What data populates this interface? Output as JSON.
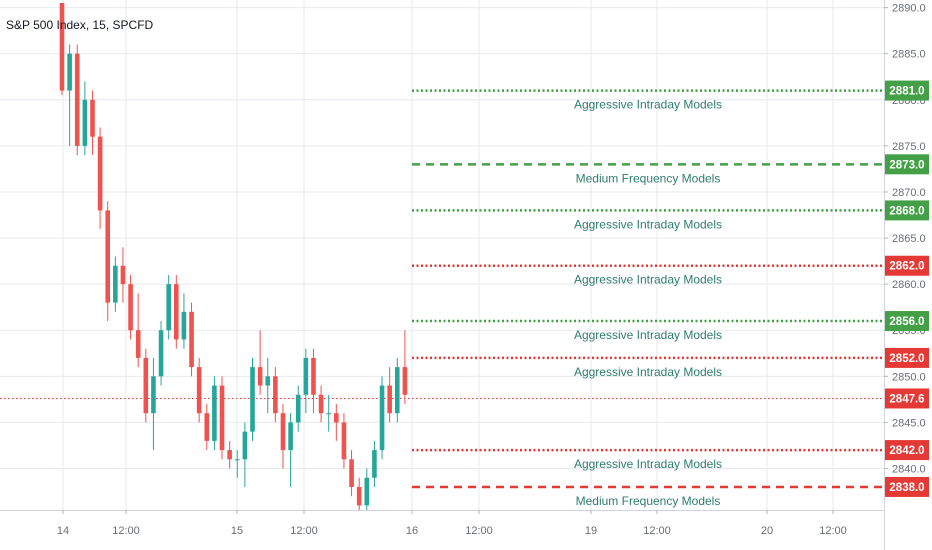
{
  "header": {
    "title": "S&P 500 Index, 15, SPCFD"
  },
  "colors": {
    "bull": "#26a69a",
    "bear": "#ef5350",
    "green_level": "#43a047",
    "red_level": "#e53935",
    "label_text": "#2e7d6d",
    "grid": "#e6e9ef",
    "axis_text": "#6a6d78"
  },
  "chart_data": {
    "type": "candlestick",
    "title": "S&P 500 Index, 15, SPCFD",
    "y_ticks": [
      "2840.0",
      "2845.0",
      "2850.0",
      "2855.0",
      "2860.0",
      "2865.0",
      "2870.0",
      "2875.0",
      "2880.0",
      "2885.0",
      "2890.0"
    ],
    "x_ticks": [
      "14",
      "12:00",
      "15",
      "12:00",
      "16",
      "12:00",
      "19",
      "12:00",
      "20",
      "12:00"
    ],
    "ylim": [
      2835.5,
      2890.5
    ],
    "current_price": {
      "label": "2847.6",
      "value": 2847.6
    },
    "levels": [
      {
        "value": 2881.0,
        "price_label": "2881.0",
        "text": "Aggressive Intraday Models",
        "color": "green",
        "style": "dotted"
      },
      {
        "value": 2873.0,
        "price_label": "2873.0",
        "text": "Medium Frequency Models",
        "color": "green",
        "style": "dashed"
      },
      {
        "value": 2868.0,
        "price_label": "2868.0",
        "text": "Aggressive Intraday Models",
        "color": "green",
        "style": "dotted"
      },
      {
        "value": 2862.0,
        "price_label": "2862.0",
        "text": "Aggressive Intraday Models",
        "color": "red",
        "style": "dotted"
      },
      {
        "value": 2856.0,
        "price_label": "2856.0",
        "text": "Aggressive Intraday Models",
        "color": "green",
        "style": "dotted"
      },
      {
        "value": 2852.0,
        "price_label": "2852.0",
        "text": "Aggressive Intraday Models",
        "color": "red",
        "style": "dotted"
      },
      {
        "value": 2842.0,
        "price_label": "2842.0",
        "text": "Aggressive Intraday Models",
        "color": "red",
        "style": "dotted"
      },
      {
        "value": 2838.0,
        "price_label": "2838.0",
        "text": "Medium Frequency Models",
        "color": "red",
        "style": "dashed"
      }
    ],
    "candles": [
      {
        "o": 2890.5,
        "h": 2890.5,
        "l": 2880.5,
        "c": 2881.0
      },
      {
        "o": 2881.0,
        "h": 2886.0,
        "l": 2875.0,
        "c": 2885.0
      },
      {
        "o": 2885.0,
        "h": 2886.0,
        "l": 2874.0,
        "c": 2875.0
      },
      {
        "o": 2875.0,
        "h": 2882.0,
        "l": 2874.0,
        "c": 2880.0
      },
      {
        "o": 2880.0,
        "h": 2881.0,
        "l": 2874.0,
        "c": 2876.0
      },
      {
        "o": 2876.0,
        "h": 2877.0,
        "l": 2866.0,
        "c": 2868.0
      },
      {
        "o": 2868.0,
        "h": 2869.0,
        "l": 2856.0,
        "c": 2858.0
      },
      {
        "o": 2858.0,
        "h": 2863.0,
        "l": 2857.0,
        "c": 2862.0
      },
      {
        "o": 2862.0,
        "h": 2864.0,
        "l": 2858.0,
        "c": 2860.0
      },
      {
        "o": 2860.0,
        "h": 2861.0,
        "l": 2854.0,
        "c": 2855.0
      },
      {
        "o": 2855.0,
        "h": 2859.0,
        "l": 2851.0,
        "c": 2852.0
      },
      {
        "o": 2852.0,
        "h": 2853.0,
        "l": 2845.0,
        "c": 2846.0
      },
      {
        "o": 2846.0,
        "h": 2852.0,
        "l": 2842.0,
        "c": 2850.0
      },
      {
        "o": 2850.0,
        "h": 2856.0,
        "l": 2849.0,
        "c": 2855.0
      },
      {
        "o": 2855.0,
        "h": 2861.0,
        "l": 2854.0,
        "c": 2860.0
      },
      {
        "o": 2860.0,
        "h": 2861.0,
        "l": 2853.0,
        "c": 2854.0
      },
      {
        "o": 2854.0,
        "h": 2859.0,
        "l": 2853.0,
        "c": 2857.0
      },
      {
        "o": 2857.0,
        "h": 2858.0,
        "l": 2850.0,
        "c": 2851.0
      },
      {
        "o": 2851.0,
        "h": 2852.0,
        "l": 2845.0,
        "c": 2846.0
      },
      {
        "o": 2846.0,
        "h": 2847.0,
        "l": 2842.0,
        "c": 2843.0
      },
      {
        "o": 2843.0,
        "h": 2850.0,
        "l": 2842.0,
        "c": 2849.0
      },
      {
        "o": 2849.0,
        "h": 2850.0,
        "l": 2841.0,
        "c": 2842.0
      },
      {
        "o": 2842.0,
        "h": 2843.0,
        "l": 2840.0,
        "c": 2841.0
      },
      {
        "o": 2841.0,
        "h": 2842.0,
        "l": 2839.0,
        "c": 2841.0
      },
      {
        "o": 2841.0,
        "h": 2845.0,
        "l": 2838.0,
        "c": 2844.0
      },
      {
        "o": 2844.0,
        "h": 2852.0,
        "l": 2843.0,
        "c": 2851.0
      },
      {
        "o": 2851.0,
        "h": 2855.0,
        "l": 2848.0,
        "c": 2849.0
      },
      {
        "o": 2849.0,
        "h": 2852.0,
        "l": 2846.0,
        "c": 2850.0
      },
      {
        "o": 2850.0,
        "h": 2851.0,
        "l": 2845.0,
        "c": 2846.0
      },
      {
        "o": 2846.0,
        "h": 2847.0,
        "l": 2840.0,
        "c": 2842.0
      },
      {
        "o": 2842.0,
        "h": 2846.0,
        "l": 2838.0,
        "c": 2845.0
      },
      {
        "o": 2845.0,
        "h": 2849.0,
        "l": 2844.0,
        "c": 2848.0
      },
      {
        "o": 2848.0,
        "h": 2853.0,
        "l": 2846.0,
        "c": 2852.0
      },
      {
        "o": 2852.0,
        "h": 2853.0,
        "l": 2846.0,
        "c": 2848.0
      },
      {
        "o": 2848.0,
        "h": 2849.0,
        "l": 2845.0,
        "c": 2846.0
      },
      {
        "o": 2846.0,
        "h": 2848.0,
        "l": 2844.0,
        "c": 2846.0
      },
      {
        "o": 2846.0,
        "h": 2847.0,
        "l": 2843.0,
        "c": 2845.0
      },
      {
        "o": 2845.0,
        "h": 2846.0,
        "l": 2840.0,
        "c": 2841.0
      },
      {
        "o": 2841.0,
        "h": 2842.0,
        "l": 2837.0,
        "c": 2838.0
      },
      {
        "o": 2838.0,
        "h": 2839.0,
        "l": 2835.5,
        "c": 2836.0
      },
      {
        "o": 2836.0,
        "h": 2840.0,
        "l": 2835.5,
        "c": 2839.0
      },
      {
        "o": 2839.0,
        "h": 2843.0,
        "l": 2838.0,
        "c": 2842.0
      },
      {
        "o": 2842.0,
        "h": 2850.0,
        "l": 2841.0,
        "c": 2849.0
      },
      {
        "o": 2849.0,
        "h": 2851.0,
        "l": 2845.0,
        "c": 2846.0
      },
      {
        "o": 2846.0,
        "h": 2852.0,
        "l": 2845.0,
        "c": 2851.0
      },
      {
        "o": 2851.0,
        "h": 2855.0,
        "l": 2847.0,
        "c": 2848.0
      }
    ]
  }
}
